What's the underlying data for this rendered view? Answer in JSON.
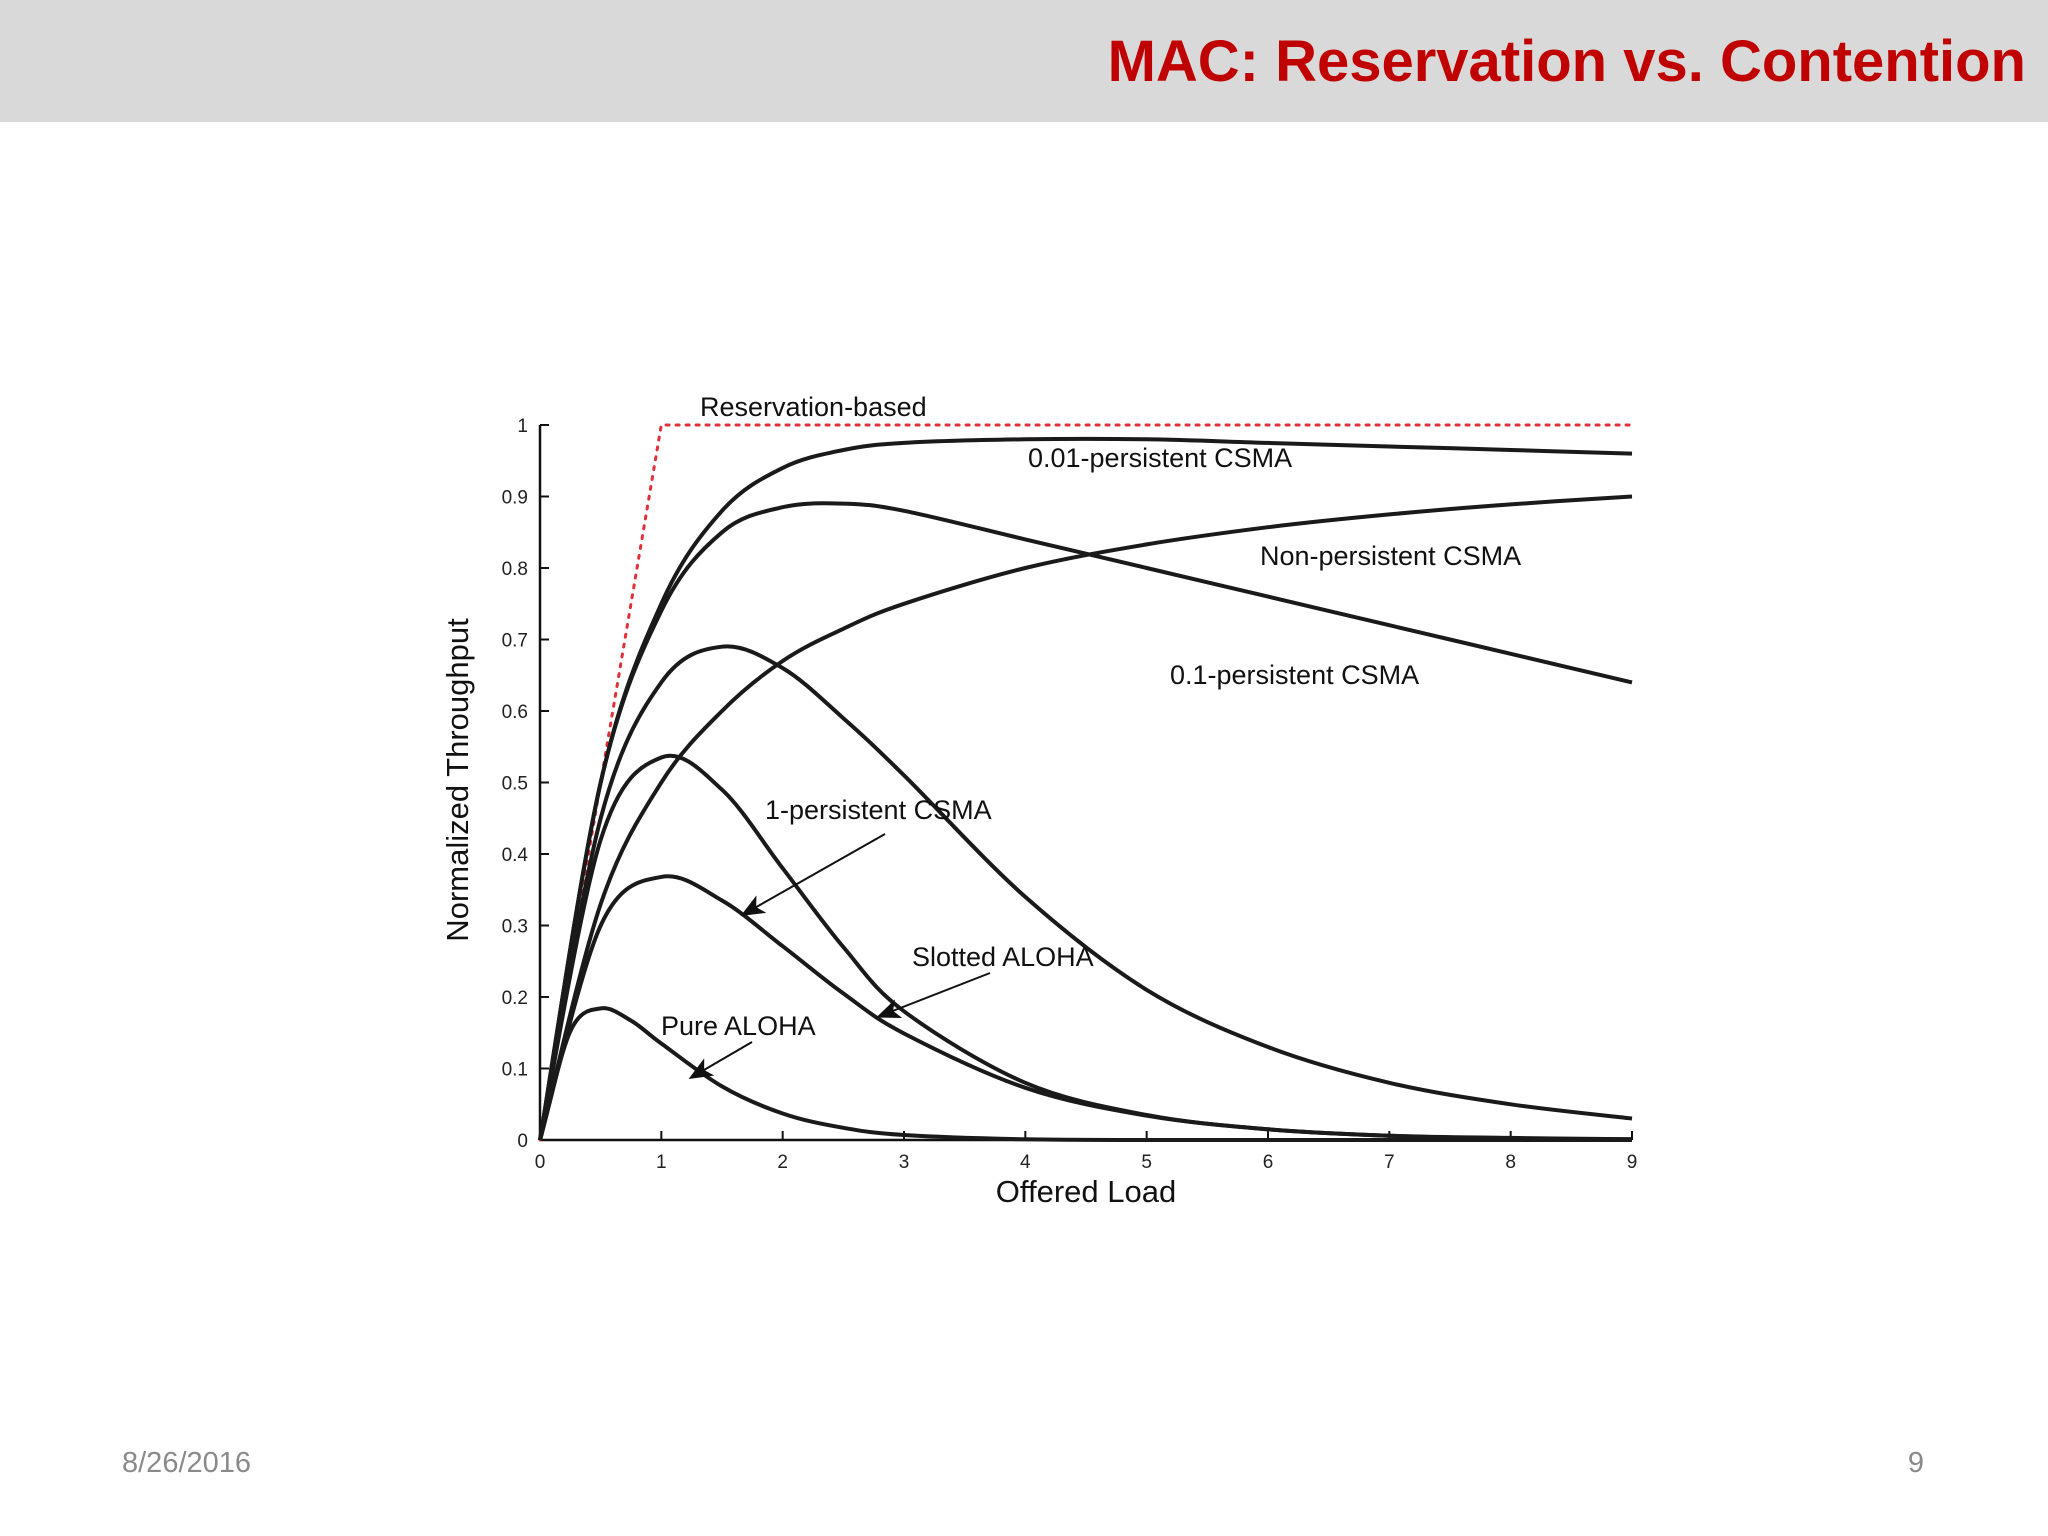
{
  "slide": {
    "title": "MAC: Reservation vs. Contention",
    "date": "8/26/2016",
    "page_number": "9"
  },
  "colors": {
    "title": "#c00000",
    "header_bg": "#d9d9d9",
    "curve": "#1a1a1a",
    "reservation": "#e0303a"
  },
  "chart_data": {
    "type": "line",
    "title": "",
    "xlabel": "Offered Load",
    "ylabel": "Normalized Throughput",
    "xlim": [
      0,
      9
    ],
    "ylim": [
      0,
      1
    ],
    "x_ticks": [
      "0",
      "1",
      "2",
      "3",
      "4",
      "5",
      "6",
      "7",
      "8",
      "9"
    ],
    "y_ticks": [
      "0",
      "0.1",
      "0.2",
      "0.3",
      "0.4",
      "0.5",
      "0.6",
      "0.7",
      "0.8",
      "0.9",
      "1"
    ],
    "grid": false,
    "legend": "none",
    "series": [
      {
        "name": "Reservation-based",
        "style": "dotted",
        "x": [
          0,
          1,
          9
        ],
        "y": [
          0,
          1.0,
          1.0
        ]
      },
      {
        "name": "0.01-persistent CSMA",
        "x": [
          0,
          0.5,
          1,
          1.5,
          2,
          2.5,
          3,
          4,
          5,
          6,
          7,
          8,
          9
        ],
        "y": [
          0,
          0.5,
          0.75,
          0.88,
          0.94,
          0.965,
          0.975,
          0.98,
          0.98,
          0.975,
          0.97,
          0.965,
          0.96
        ]
      },
      {
        "name": "0.1-persistent CSMA",
        "x": [
          0,
          0.5,
          1,
          1.5,
          2,
          2.5,
          3,
          4,
          5,
          6,
          7,
          8,
          9
        ],
        "y": [
          0,
          0.5,
          0.74,
          0.85,
          0.885,
          0.89,
          0.88,
          0.84,
          0.8,
          0.76,
          0.72,
          0.68,
          0.64
        ]
      },
      {
        "name": "Non-persistent CSMA",
        "x": [
          0,
          0.5,
          1,
          1.5,
          2,
          2.5,
          3,
          4,
          5,
          6,
          7,
          8,
          9
        ],
        "y": [
          0,
          0.33,
          0.5,
          0.6,
          0.67,
          0.715,
          0.75,
          0.8,
          0.833,
          0.857,
          0.875,
          0.889,
          0.9
        ]
      },
      {
        "name": "1-persistent CSMA",
        "x": [
          0,
          0.5,
          1,
          1.5,
          2,
          2.5,
          3,
          4,
          5,
          6,
          7,
          8,
          9
        ],
        "y": [
          0,
          0.45,
          0.64,
          0.69,
          0.66,
          0.59,
          0.51,
          0.34,
          0.21,
          0.13,
          0.08,
          0.05,
          0.03
        ]
      },
      {
        "name": "Slotted ALOHA",
        "x": [
          0,
          0.5,
          1,
          1.5,
          2,
          2.5,
          3,
          4,
          5,
          6,
          7,
          8,
          9
        ],
        "y": [
          0,
          0.3,
          0.368,
          0.335,
          0.271,
          0.205,
          0.149,
          0.073,
          0.034,
          0.015,
          0.006,
          0.003,
          0.001
        ]
      },
      {
        "name": "Pure ALOHA",
        "x": [
          0,
          0.25,
          0.5,
          0.75,
          1,
          1.5,
          2,
          2.5,
          3,
          4,
          5,
          6,
          7,
          8,
          9
        ],
        "y": [
          0,
          0.152,
          0.184,
          0.167,
          0.135,
          0.075,
          0.037,
          0.017,
          0.007,
          0.001,
          0,
          0,
          0,
          0,
          0
        ]
      },
      {
        "name": "unlabeled",
        "style": "solid",
        "x": [
          0,
          0.5,
          1,
          1.5,
          2,
          2.5,
          3,
          4,
          5,
          6,
          7,
          8,
          9
        ],
        "y": [
          0,
          0.42,
          0.535,
          0.49,
          0.38,
          0.27,
          0.18,
          0.08,
          0.035,
          0.015,
          0.006,
          0.002,
          0.001
        ]
      }
    ],
    "annotations": [
      "Reservation-based",
      "0.01-persistent CSMA",
      "Non-persistent CSMA",
      "0.1-persistent CSMA",
      "1-persistent CSMA",
      "Slotted ALOHA",
      "Pure ALOHA"
    ]
  }
}
